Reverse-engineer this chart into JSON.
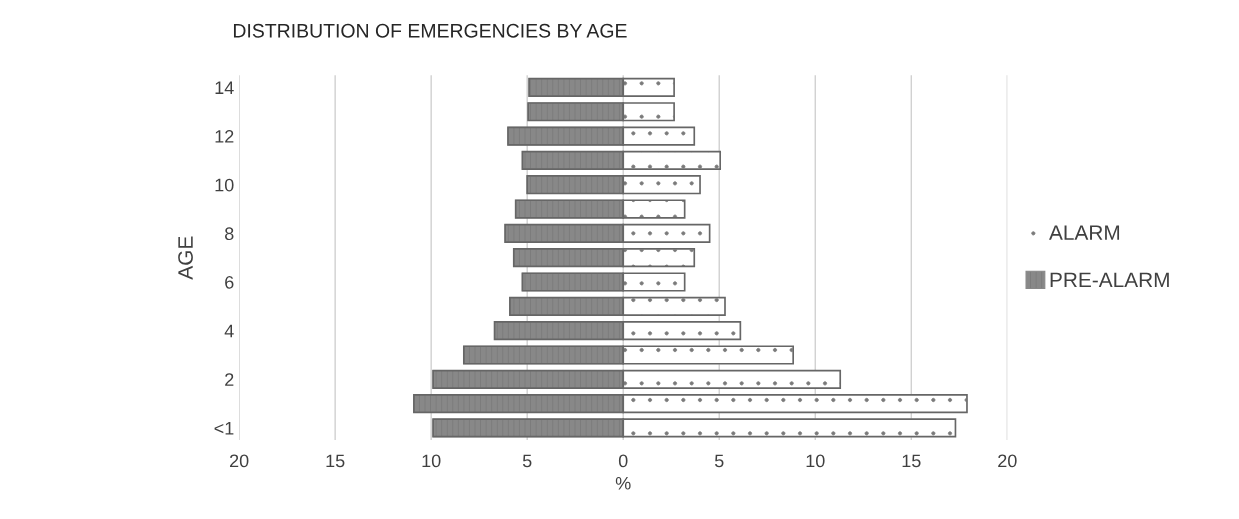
{
  "chart_data": {
    "type": "bar",
    "orientation": "horizontal",
    "title": "DISTRIBUTION OF EMERGENCIES BY AGE",
    "xlabel": "%",
    "ylabel": "AGE",
    "categories": [
      "14",
      null,
      "12",
      null,
      "10",
      null,
      "8",
      null,
      "6",
      null,
      "4",
      null,
      "2",
      null,
      "<1"
    ],
    "series": [
      {
        "name": "ALARM",
        "color": "#ffffff",
        "values": [
          2.65,
          2.65,
          3.7,
          5.05,
          4.0,
          3.2,
          4.5,
          3.7,
          3.2,
          5.3,
          6.1,
          8.85,
          11.3,
          17.9,
          17.3
        ]
      },
      {
        "name": "PRE-ALARM",
        "color": "#888888",
        "values": [
          -4.9,
          -4.95,
          -6.0,
          -5.25,
          -5.0,
          -5.6,
          -6.15,
          -5.7,
          -5.25,
          -5.9,
          -6.7,
          -8.3,
          -9.9,
          -10.9,
          -9.9
        ]
      }
    ],
    "xlim": [
      -20,
      20
    ],
    "xticks": [
      {
        "value": -20,
        "label": "20"
      },
      {
        "value": -15,
        "label": "15"
      },
      {
        "value": -10,
        "label": "10"
      },
      {
        "value": -5,
        "label": "5"
      },
      0,
      5,
      10,
      15,
      20
    ],
    "grid": "x",
    "legend": "right",
    "stacked": true
  }
}
